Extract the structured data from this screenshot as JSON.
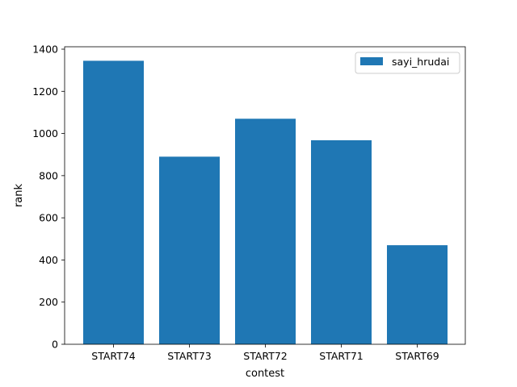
{
  "chart_data": {
    "type": "bar",
    "title": "",
    "xlabel": "contest",
    "ylabel": "rank",
    "categories": [
      "START74",
      "START73",
      "START72",
      "START71",
      "START69"
    ],
    "series": [
      {
        "name": "sayi_hrudai",
        "values": [
          1345,
          890,
          1070,
          968,
          470
        ],
        "color": "#1f77b4"
      }
    ],
    "ylim": [
      0,
      1400
    ],
    "yticks": [
      0,
      200,
      400,
      600,
      800,
      1000,
      1200,
      1400
    ],
    "grid": false,
    "legend_position": "top-right"
  }
}
